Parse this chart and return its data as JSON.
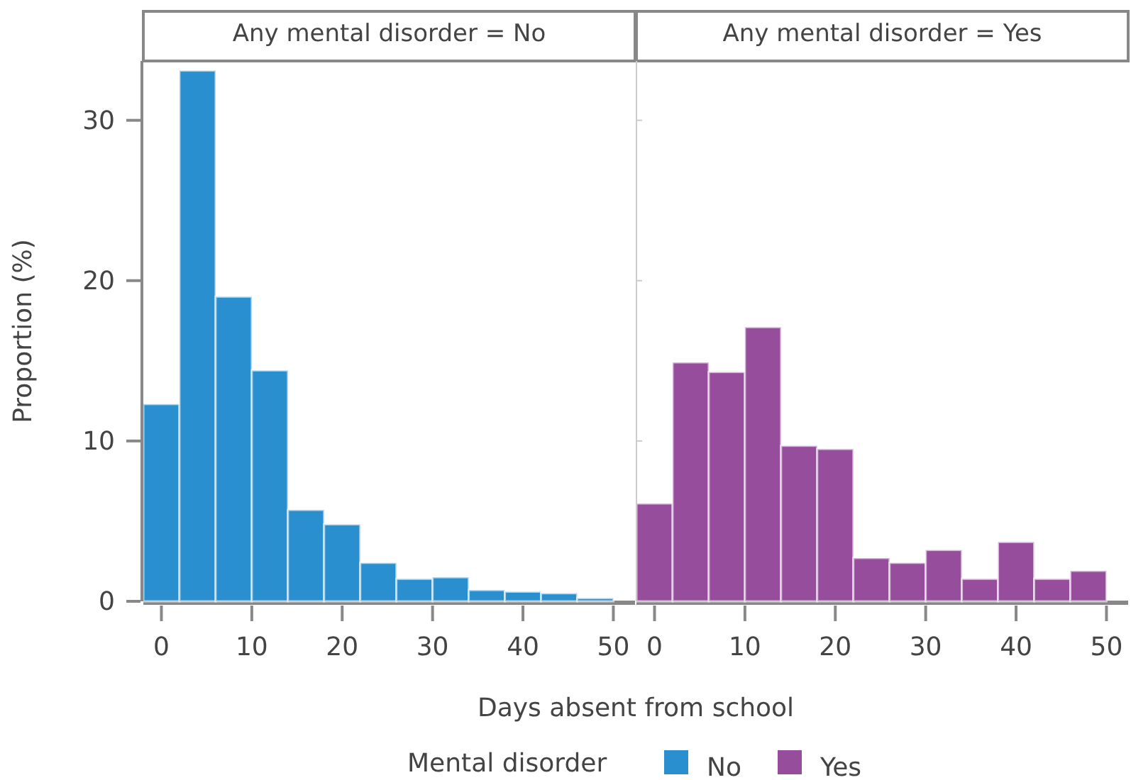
{
  "chart_data": [
    {
      "type": "histogram",
      "title": "Any mental disorder = No",
      "xlabel": "Days absent from school",
      "ylabel": "Proportion (%)",
      "legend_title": "Mental disorder",
      "legend": "bottom",
      "bins": [
        -2,
        2,
        6,
        10,
        14,
        18,
        22,
        26,
        30,
        34,
        38,
        42,
        46,
        50
      ],
      "series": [
        {
          "name": "No",
          "color": "#2a8fce",
          "values": [
            12.3,
            33.1,
            19.0,
            14.4,
            5.7,
            4.8,
            2.4,
            1.4,
            1.5,
            0.7,
            0.6,
            0.5,
            0.2
          ]
        }
      ],
      "xlim": [
        -2,
        52.4
      ],
      "xticks": [
        0,
        10,
        20,
        30,
        40,
        50
      ],
      "ylim": [
        0,
        33.7
      ],
      "yticks": [
        0,
        10,
        20,
        30
      ]
    },
    {
      "type": "histogram",
      "title": "Any mental disorder = Yes",
      "legend": "bottom",
      "tick_labels": "x",
      "bins": [
        -2,
        2,
        6,
        10,
        14,
        18,
        22,
        26,
        30,
        34,
        38,
        42,
        46,
        50
      ],
      "series": [
        {
          "name": "Yes",
          "color": "#954d9c",
          "values": [
            6.1,
            14.9,
            14.3,
            17.1,
            9.7,
            9.5,
            2.7,
            2.4,
            3.2,
            1.4,
            3.7,
            1.4,
            1.9
          ]
        }
      ],
      "xlim": [
        -2,
        52.4
      ],
      "xticks": [
        0,
        10,
        20,
        30,
        40,
        50
      ],
      "ylim": [
        0,
        33.7
      ],
      "yticks": [
        0,
        10,
        20,
        30
      ]
    }
  ]
}
